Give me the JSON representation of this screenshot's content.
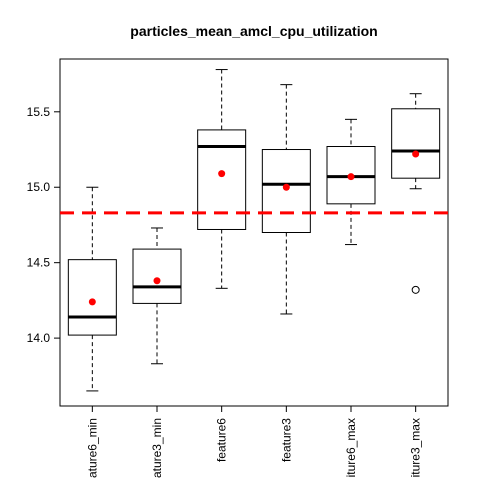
{
  "chart_data": {
    "type": "boxplot",
    "title": "particles_mean_amcl_cpu_utilization",
    "xlabel": "",
    "ylabel": "",
    "categories": [
      "ature6_min",
      "ature3_min",
      "feature6",
      "feature3",
      "iture6_max",
      "iture3_max"
    ],
    "ylim": [
      13.55,
      15.85
    ],
    "yticks": [
      14.0,
      14.5,
      15.0,
      15.5
    ],
    "ytick_labels": [
      "14.0",
      "14.5",
      "15.0",
      "15.5"
    ],
    "grid": false,
    "boxes": [
      {
        "whisker_low": 13.65,
        "q1": 14.02,
        "median": 14.14,
        "q3": 14.52,
        "whisker_high": 15.0,
        "mean": 14.24,
        "outliers": []
      },
      {
        "whisker_low": 13.83,
        "q1": 14.23,
        "median": 14.34,
        "q3": 14.59,
        "whisker_high": 14.73,
        "mean": 14.38,
        "outliers": []
      },
      {
        "whisker_low": 14.33,
        "q1": 14.72,
        "median": 15.27,
        "q3": 15.38,
        "whisker_high": 15.78,
        "mean": 15.09,
        "outliers": []
      },
      {
        "whisker_low": 14.16,
        "q1": 14.7,
        "median": 15.02,
        "q3": 15.25,
        "whisker_high": 15.68,
        "mean": 15.0,
        "outliers": []
      },
      {
        "whisker_low": 14.62,
        "q1": 14.89,
        "median": 15.07,
        "q3": 15.27,
        "whisker_high": 15.45,
        "mean": 15.07,
        "outliers": []
      },
      {
        "whisker_low": 14.99,
        "q1": 15.06,
        "median": 15.24,
        "q3": 15.52,
        "whisker_high": 15.62,
        "mean": 15.22,
        "outliers": [
          14.32
        ]
      }
    ],
    "reference_line": {
      "value": 14.83,
      "color": "#ff0000",
      "style": "dashed"
    },
    "mean_marker_color": "#ff0000",
    "box_color": "#000000"
  }
}
